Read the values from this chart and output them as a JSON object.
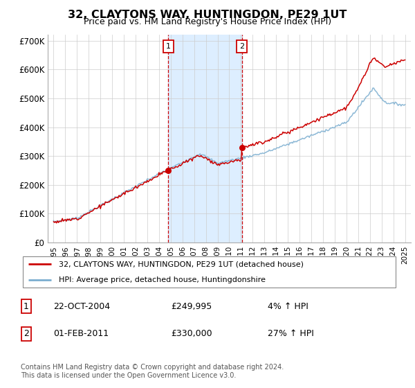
{
  "title": "32, CLAYTONS WAY, HUNTINGDON, PE29 1UT",
  "subtitle": "Price paid vs. HM Land Registry's House Price Index (HPI)",
  "ylim": [
    0,
    720000
  ],
  "yticks": [
    0,
    100000,
    200000,
    300000,
    400000,
    500000,
    600000,
    700000
  ],
  "ytick_labels": [
    "£0",
    "£100K",
    "£200K",
    "£300K",
    "£400K",
    "£500K",
    "£600K",
    "£700K"
  ],
  "sale1_date": 2004.8,
  "sale1_price": 249995,
  "sale1_label": "1",
  "sale2_date": 2011.08,
  "sale2_price": 330000,
  "sale2_label": "2",
  "red_line_color": "#cc0000",
  "blue_line_color": "#7aadcf",
  "shade_color": "#ddeeff",
  "grid_color": "#cccccc",
  "legend1_label": "32, CLAYTONS WAY, HUNTINGDON, PE29 1UT (detached house)",
  "legend2_label": "HPI: Average price, detached house, Huntingdonshire",
  "table_row1": [
    "1",
    "22-OCT-2004",
    "£249,995",
    "4% ↑ HPI"
  ],
  "table_row2": [
    "2",
    "01-FEB-2011",
    "£330,000",
    "27% ↑ HPI"
  ],
  "footnote": "Contains HM Land Registry data © Crown copyright and database right 2024.\nThis data is licensed under the Open Government Licence v3.0.",
  "background_color": "#ffffff"
}
